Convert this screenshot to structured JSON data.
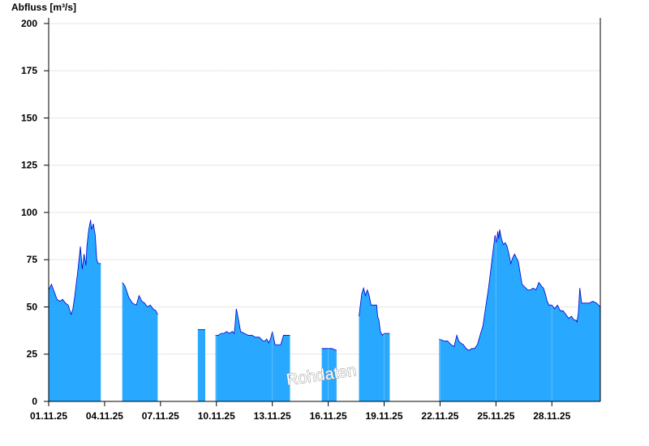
{
  "chart_data": {
    "type": "area",
    "title": "",
    "ylabel": "Abfluss [m³/s]",
    "xlabel": "",
    "ylim": [
      0,
      203
    ],
    "xlim": [
      0,
      29.6
    ],
    "y_ticks": [
      0,
      25,
      50,
      75,
      100,
      125,
      150,
      175,
      200
    ],
    "x_ticks": [
      {
        "x": 0,
        "label": "01.11.25"
      },
      {
        "x": 3,
        "label": "04.11.25"
      },
      {
        "x": 6,
        "label": "07.11.25"
      },
      {
        "x": 9,
        "label": "10.11.25"
      },
      {
        "x": 12,
        "label": "13.11.25"
      },
      {
        "x": 15,
        "label": "16.11.25"
      },
      {
        "x": 18,
        "label": "19.11.25"
      },
      {
        "x": 21,
        "label": "22.11.25"
      },
      {
        "x": 24,
        "label": "25.11.25"
      },
      {
        "x": 27,
        "label": "28.11.25"
      }
    ],
    "grid": true,
    "series_segments": [
      {
        "x": [
          0,
          0.15,
          0.3,
          0.45,
          0.6,
          0.75,
          0.9,
          1.05,
          1.2,
          1.3,
          1.4,
          1.55,
          1.7,
          1.8,
          1.9,
          2.0,
          2.05,
          2.15,
          2.25,
          2.3,
          2.4,
          2.5,
          2.58,
          2.65,
          2.72,
          2.8
        ],
        "y": [
          59,
          62,
          58,
          54,
          53,
          54,
          52,
          51,
          46,
          49,
          56,
          68,
          82,
          70,
          78,
          72,
          82,
          91,
          96,
          91,
          94,
          88,
          75,
          73,
          73,
          73
        ]
      },
      {
        "x": [
          3.95,
          4.1,
          4.3,
          4.5,
          4.7,
          4.85,
          5.0,
          5.15,
          5.3,
          5.45,
          5.6,
          5.75,
          5.85
        ],
        "y": [
          63,
          61,
          55,
          52,
          51,
          56,
          53,
          52,
          50,
          51,
          49,
          48,
          46
        ]
      },
      {
        "x": [
          8.0,
          8.4
        ],
        "y": [
          38,
          38
        ]
      },
      {
        "x": [
          8.95,
          9.1,
          9.25,
          9.4,
          9.55,
          9.7,
          9.85,
          9.95,
          10.0,
          10.07,
          10.15,
          10.3,
          10.5,
          10.7,
          10.9,
          11.1,
          11.3,
          11.5,
          11.6,
          11.7,
          11.8,
          11.9,
          12.0,
          12.15,
          12.3,
          12.45,
          12.6,
          12.75,
          12.85,
          12.95
        ],
        "y": [
          35,
          35,
          36,
          36,
          37,
          36,
          37,
          36,
          40,
          49,
          45,
          37,
          36,
          35,
          35,
          34,
          34,
          32,
          32,
          33,
          31,
          33,
          37,
          30,
          30,
          30,
          35,
          35,
          35,
          35
        ]
      },
      {
        "x": [
          14.65,
          14.9,
          15.2,
          15.45
        ],
        "y": [
          28,
          28,
          28,
          27
        ]
      },
      {
        "x": [
          16.65,
          16.8,
          16.9,
          17.0,
          17.1,
          17.2,
          17.3,
          17.4,
          17.5,
          17.6,
          17.65,
          17.72,
          17.8,
          17.9,
          18.0,
          18.1,
          18.2,
          18.3
        ],
        "y": [
          45,
          57,
          60,
          56,
          59,
          56,
          51,
          51,
          51,
          51,
          45,
          43,
          37,
          35,
          36,
          36,
          36,
          36
        ]
      },
      {
        "x": [
          20.95,
          21.2,
          21.4,
          21.6,
          21.75,
          21.9,
          22.0,
          22.1,
          22.25,
          22.4,
          22.55,
          22.7,
          22.85,
          23.0,
          23.15,
          23.3,
          23.45,
          23.6,
          23.75,
          23.85,
          23.95,
          24.02,
          24.1,
          24.15,
          24.2,
          24.3,
          24.4,
          24.5,
          24.6,
          24.7,
          24.8,
          24.9,
          25.0,
          25.1,
          25.2,
          25.3,
          25.4,
          25.5,
          25.6,
          25.7,
          25.85,
          26.0,
          26.15,
          26.3,
          26.45,
          26.55,
          26.65,
          26.75,
          26.85,
          27.0,
          27.15,
          27.3,
          27.45,
          27.6,
          27.75,
          27.9,
          28.05,
          28.2,
          28.3,
          28.35,
          28.42,
          28.5,
          28.6,
          28.8,
          29.0,
          29.2,
          29.4,
          29.6
        ],
        "y": [
          33,
          32,
          32,
          30,
          29,
          35,
          32,
          31,
          30,
          28,
          27,
          28,
          28,
          30,
          35,
          40,
          50,
          60,
          72,
          80,
          88,
          84,
          90,
          86,
          91,
          86,
          83,
          84,
          82,
          78,
          73,
          76,
          78,
          76,
          74,
          68,
          62,
          61,
          60,
          59,
          59,
          60,
          59,
          63,
          61,
          60,
          57,
          53,
          51,
          51,
          49,
          51,
          48,
          48,
          46,
          44,
          45,
          43,
          43,
          42,
          47,
          60,
          52,
          52,
          52,
          53,
          52,
          50
        ]
      }
    ],
    "colors": {
      "fill": "#29a8ff",
      "line": "#0000cc",
      "grid": "#e6e6e6",
      "axis": "#000000"
    },
    "annotation": "Rohdaten"
  }
}
